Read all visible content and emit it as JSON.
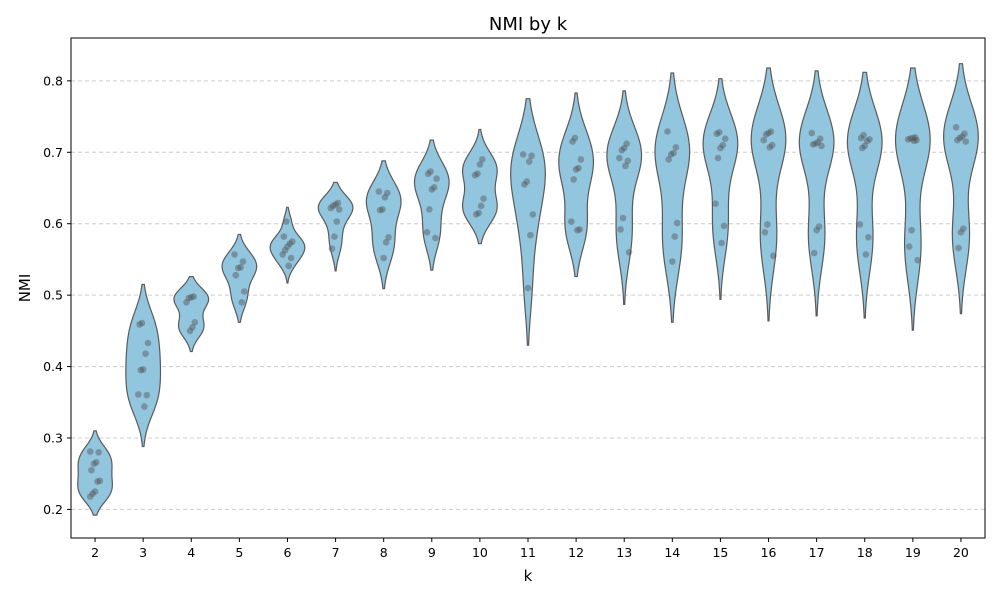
{
  "chart_data": {
    "type": "violin",
    "title": "NMI by k",
    "xlabel": "k",
    "ylabel": "NMI",
    "ylim": [
      0.16,
      0.86
    ],
    "yticks": [
      0.2,
      0.3,
      0.4,
      0.5,
      0.6,
      0.7,
      0.8
    ],
    "ytick_labels": [
      "0.2",
      "0.3",
      "0.4",
      "0.5",
      "0.6",
      "0.7",
      "0.8"
    ],
    "grid": "horizontal dashed",
    "colors": {
      "violin_fill": "#92c5de",
      "violin_edge": "#5a5a5a",
      "point": "#555555",
      "grid": "#cccccc"
    },
    "categories": [
      "2",
      "3",
      "4",
      "5",
      "6",
      "7",
      "8",
      "9",
      "10",
      "11",
      "12",
      "13",
      "14",
      "15",
      "16",
      "17",
      "18",
      "19",
      "20"
    ],
    "violins": [
      {
        "k": "2",
        "min": 0.192,
        "max": 0.31,
        "points": [
          0.281,
          0.28,
          0.266,
          0.264,
          0.255,
          0.24,
          0.239,
          0.225,
          0.222,
          0.218
        ]
      },
      {
        "k": "3",
        "min": 0.288,
        "max": 0.515,
        "points": [
          0.461,
          0.459,
          0.433,
          0.418,
          0.396,
          0.395,
          0.361,
          0.36,
          0.344
        ]
      },
      {
        "k": "4",
        "min": 0.421,
        "max": 0.526,
        "points": [
          0.498,
          0.497,
          0.496,
          0.49,
          0.462,
          0.455,
          0.45
        ]
      },
      {
        "k": "5",
        "min": 0.462,
        "max": 0.585,
        "points": [
          0.557,
          0.547,
          0.539,
          0.538,
          0.528,
          0.505,
          0.49
        ]
      },
      {
        "k": "6",
        "min": 0.517,
        "max": 0.623,
        "points": [
          0.603,
          0.582,
          0.575,
          0.572,
          0.568,
          0.563,
          0.557,
          0.552,
          0.541
        ]
      },
      {
        "k": "7",
        "min": 0.534,
        "max": 0.658,
        "points": [
          0.629,
          0.627,
          0.625,
          0.622,
          0.62,
          0.603,
          0.582,
          0.565
        ]
      },
      {
        "k": "8",
        "min": 0.509,
        "max": 0.688,
        "points": [
          0.645,
          0.643,
          0.637,
          0.62,
          0.619,
          0.581,
          0.574,
          0.552
        ]
      },
      {
        "k": "9",
        "min": 0.535,
        "max": 0.717,
        "points": [
          0.673,
          0.67,
          0.663,
          0.651,
          0.648,
          0.62,
          0.588,
          0.58
        ]
      },
      {
        "k": "10",
        "min": 0.572,
        "max": 0.732,
        "points": [
          0.69,
          0.683,
          0.67,
          0.668,
          0.635,
          0.625,
          0.615,
          0.613
        ]
      },
      {
        "k": "11",
        "min": 0.43,
        "max": 0.775,
        "points": [
          0.697,
          0.695,
          0.687,
          0.659,
          0.655,
          0.613,
          0.584,
          0.51
        ]
      },
      {
        "k": "12",
        "min": 0.526,
        "max": 0.783,
        "points": [
          0.72,
          0.715,
          0.69,
          0.678,
          0.676,
          0.662,
          0.603,
          0.592,
          0.591
        ]
      },
      {
        "k": "13",
        "min": 0.487,
        "max": 0.786,
        "points": [
          0.712,
          0.706,
          0.703,
          0.692,
          0.688,
          0.681,
          0.608,
          0.592,
          0.56
        ]
      },
      {
        "k": "14",
        "min": 0.462,
        "max": 0.811,
        "points": [
          0.729,
          0.707,
          0.699,
          0.697,
          0.69,
          0.601,
          0.582,
          0.547
        ]
      },
      {
        "k": "15",
        "min": 0.494,
        "max": 0.803,
        "points": [
          0.728,
          0.726,
          0.719,
          0.71,
          0.706,
          0.692,
          0.628,
          0.597,
          0.573
        ]
      },
      {
        "k": "16",
        "min": 0.464,
        "max": 0.818,
        "points": [
          0.729,
          0.727,
          0.725,
          0.717,
          0.71,
          0.707,
          0.599,
          0.588,
          0.555
        ]
      },
      {
        "k": "17",
        "min": 0.471,
        "max": 0.814,
        "points": [
          0.727,
          0.719,
          0.714,
          0.712,
          0.711,
          0.709,
          0.596,
          0.591,
          0.559
        ]
      },
      {
        "k": "18",
        "min": 0.468,
        "max": 0.812,
        "points": [
          0.724,
          0.72,
          0.718,
          0.716,
          0.709,
          0.706,
          0.599,
          0.581,
          0.557
        ]
      },
      {
        "k": "19",
        "min": 0.451,
        "max": 0.818,
        "points": [
          0.721,
          0.72,
          0.719,
          0.718,
          0.717,
          0.716,
          0.591,
          0.568,
          0.549
        ]
      },
      {
        "k": "20",
        "min": 0.474,
        "max": 0.824,
        "points": [
          0.735,
          0.726,
          0.722,
          0.72,
          0.717,
          0.715,
          0.593,
          0.588,
          0.566
        ]
      }
    ]
  }
}
